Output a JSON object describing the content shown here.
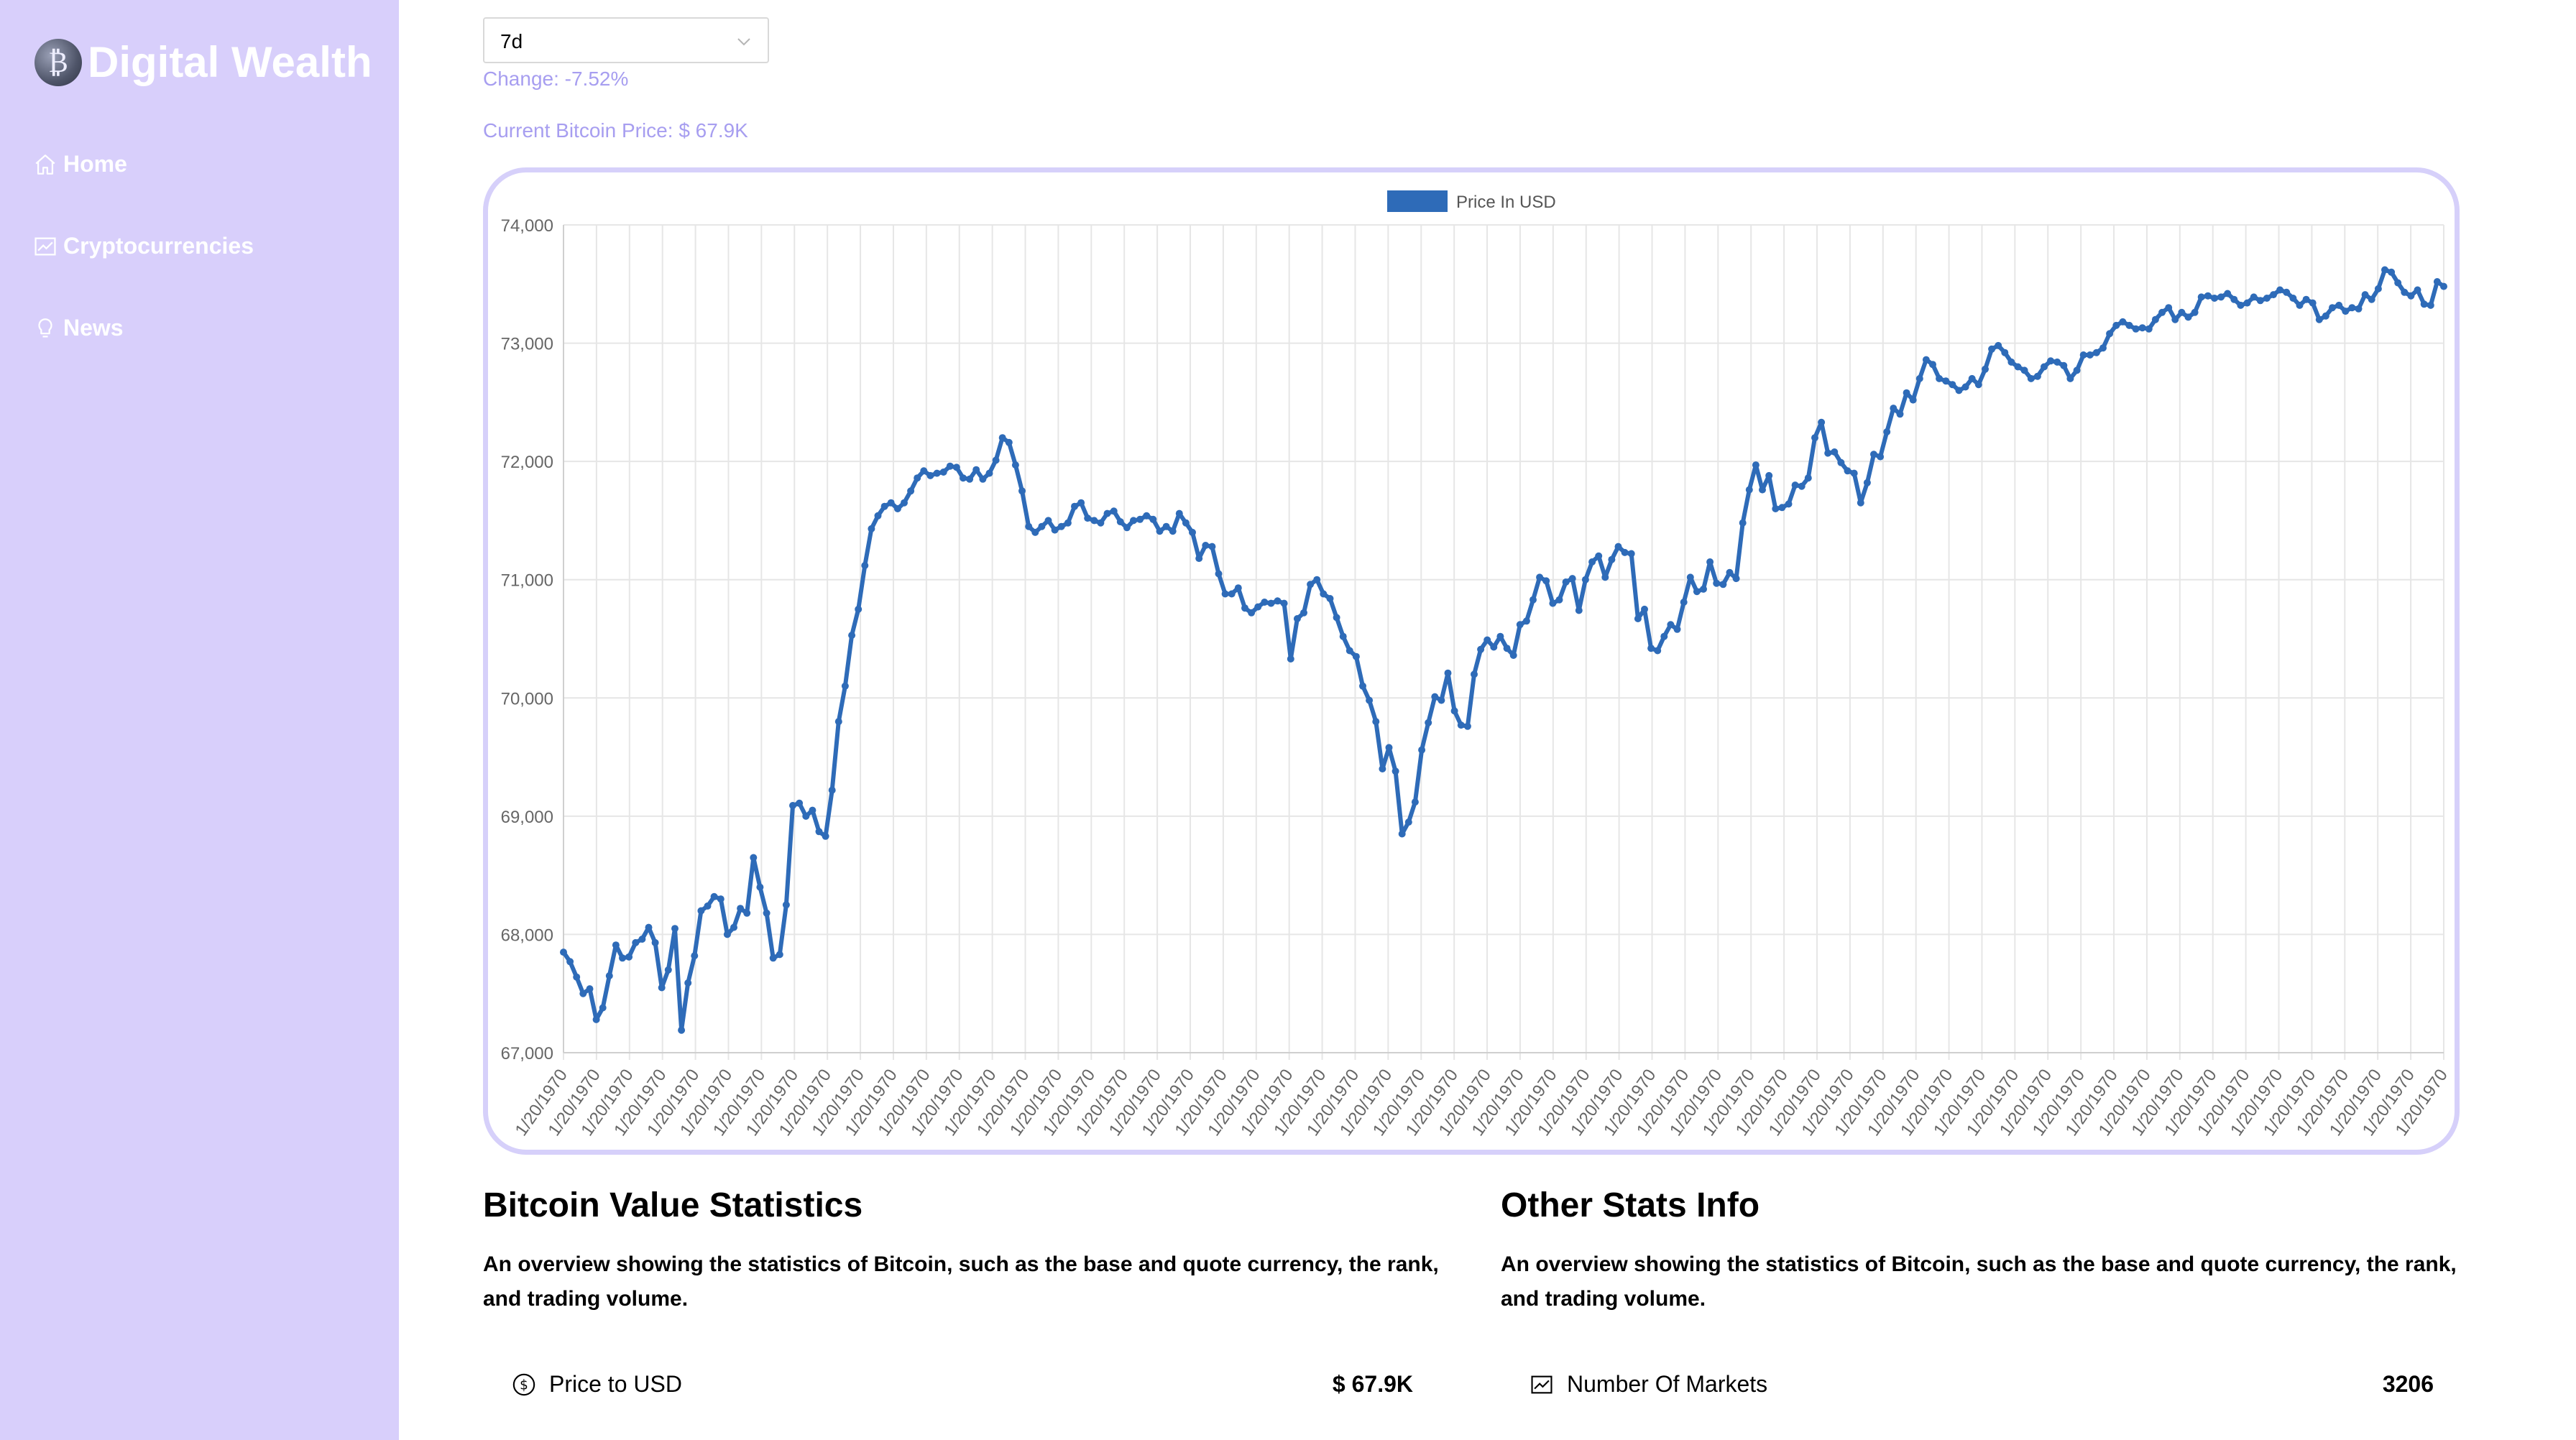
{
  "sidebar": {
    "logo_text": "Digital Wealth",
    "logo_icon": "coin-logo-icon",
    "items": [
      {
        "label": "Home",
        "icon": "home-icon"
      },
      {
        "label": "Cryptocurrencies",
        "icon": "chart-icon"
      },
      {
        "label": "News",
        "icon": "lightbulb-icon"
      }
    ]
  },
  "controls": {
    "time_period": "7d",
    "change_text": "Change: -7.52%",
    "current_price_text": "Current Bitcoin Price: $ 67.9K"
  },
  "colors": {
    "sidebar_bg": "#d8cffb",
    "accent_text": "#a79ef0",
    "line": "#2e6bb8",
    "card_border": "#d6d0fa"
  },
  "chart_data": {
    "type": "line",
    "legend": [
      "Price In USD"
    ],
    "legend_position": "top-center",
    "ylim": [
      67000,
      74000
    ],
    "yticks": [
      "74,000",
      "73,000",
      "72,000",
      "71,000",
      "70,000",
      "69,000",
      "68,000",
      "67,000"
    ],
    "x_tick_label": "1/20/1970",
    "x_tick_count": 58,
    "grid": true,
    "series": [
      {
        "name": "Price In USD",
        "values": [
          67850,
          67770,
          67640,
          67500,
          67540,
          67280,
          67380,
          67650,
          67910,
          67800,
          67810,
          67930,
          67960,
          68060,
          67930,
          67550,
          67700,
          68050,
          67190,
          67590,
          67820,
          68200,
          68240,
          68320,
          68300,
          68000,
          68060,
          68220,
          68180,
          68650,
          68400,
          68180,
          67800,
          67830,
          68250,
          69090,
          69110,
          69000,
          69050,
          68870,
          68830,
          69220,
          69800,
          70100,
          70530,
          70750,
          71120,
          71430,
          71540,
          71620,
          71650,
          71600,
          71650,
          71750,
          71860,
          71920,
          71880,
          71900,
          71910,
          71960,
          71950,
          71860,
          71850,
          71930,
          71850,
          71900,
          72010,
          72200,
          72160,
          71970,
          71750,
          71450,
          71400,
          71450,
          71500,
          71420,
          71450,
          71480,
          71620,
          71650,
          71520,
          71500,
          71480,
          71560,
          71580,
          71490,
          71440,
          71500,
          71510,
          71540,
          71510,
          71410,
          71450,
          71410,
          71560,
          71480,
          71400,
          71180,
          71290,
          71280,
          71050,
          70880,
          70880,
          70930,
          70760,
          70720,
          70770,
          70810,
          70800,
          70820,
          70800,
          70330,
          70670,
          70720,
          70960,
          71000,
          70880,
          70840,
          70680,
          70520,
          70400,
          70350,
          70100,
          69980,
          69800,
          69400,
          69580,
          69380,
          68850,
          68950,
          69120,
          69560,
          69790,
          70010,
          69980,
          70210,
          69890,
          69770,
          69760,
          70200,
          70410,
          70490,
          70430,
          70520,
          70420,
          70360,
          70620,
          70650,
          70830,
          71020,
          70990,
          70800,
          70830,
          70980,
          71010,
          70740,
          71000,
          71150,
          71200,
          71020,
          71170,
          71280,
          71230,
          71220,
          70670,
          70750,
          70420,
          70400,
          70520,
          70620,
          70580,
          70810,
          71020,
          70900,
          70920,
          71150,
          70970,
          70960,
          71060,
          71010,
          71480,
          71760,
          71970,
          71760,
          71880,
          71600,
          71610,
          71640,
          71800,
          71790,
          71860,
          72200,
          72330,
          72070,
          72080,
          71990,
          71920,
          71900,
          71650,
          71820,
          72060,
          72040,
          72250,
          72450,
          72400,
          72580,
          72520,
          72700,
          72860,
          72820,
          72700,
          72680,
          72650,
          72600,
          72630,
          72700,
          72650,
          72780,
          72950,
          72980,
          72920,
          72840,
          72800,
          72770,
          72700,
          72720,
          72800,
          72850,
          72840,
          72810,
          72700,
          72770,
          72900,
          72900,
          72920,
          72960,
          73080,
          73150,
          73180,
          73150,
          73120,
          73130,
          73120,
          73200,
          73260,
          73300,
          73200,
          73260,
          73220,
          73260,
          73390,
          73400,
          73380,
          73390,
          73420,
          73370,
          73320,
          73340,
          73390,
          73360,
          73380,
          73410,
          73450,
          73430,
          73380,
          73320,
          73370,
          73340,
          73200,
          73230,
          73300,
          73320,
          73270,
          73300,
          73290,
          73410,
          73370,
          73460,
          73620,
          73600,
          73510,
          73430,
          73400,
          73450,
          73330,
          73320,
          73520,
          73480
        ]
      }
    ]
  },
  "bitcoin_stats": {
    "title": "Bitcoin Value Statistics",
    "description": "An overview showing the statistics of Bitcoin, such as the base and quote currency, the rank, and trading volume.",
    "rows": [
      {
        "label": "Price to USD",
        "value": "$ 67.9K",
        "icon": "dollar-circle-icon"
      }
    ]
  },
  "other_stats": {
    "title": "Other Stats Info",
    "description": "An overview showing the statistics of Bitcoin, such as the base and quote currency, the rank, and trading volume.",
    "rows": [
      {
        "label": "Number Of Markets",
        "value": "3206",
        "icon": "fund-chart-icon"
      }
    ]
  }
}
